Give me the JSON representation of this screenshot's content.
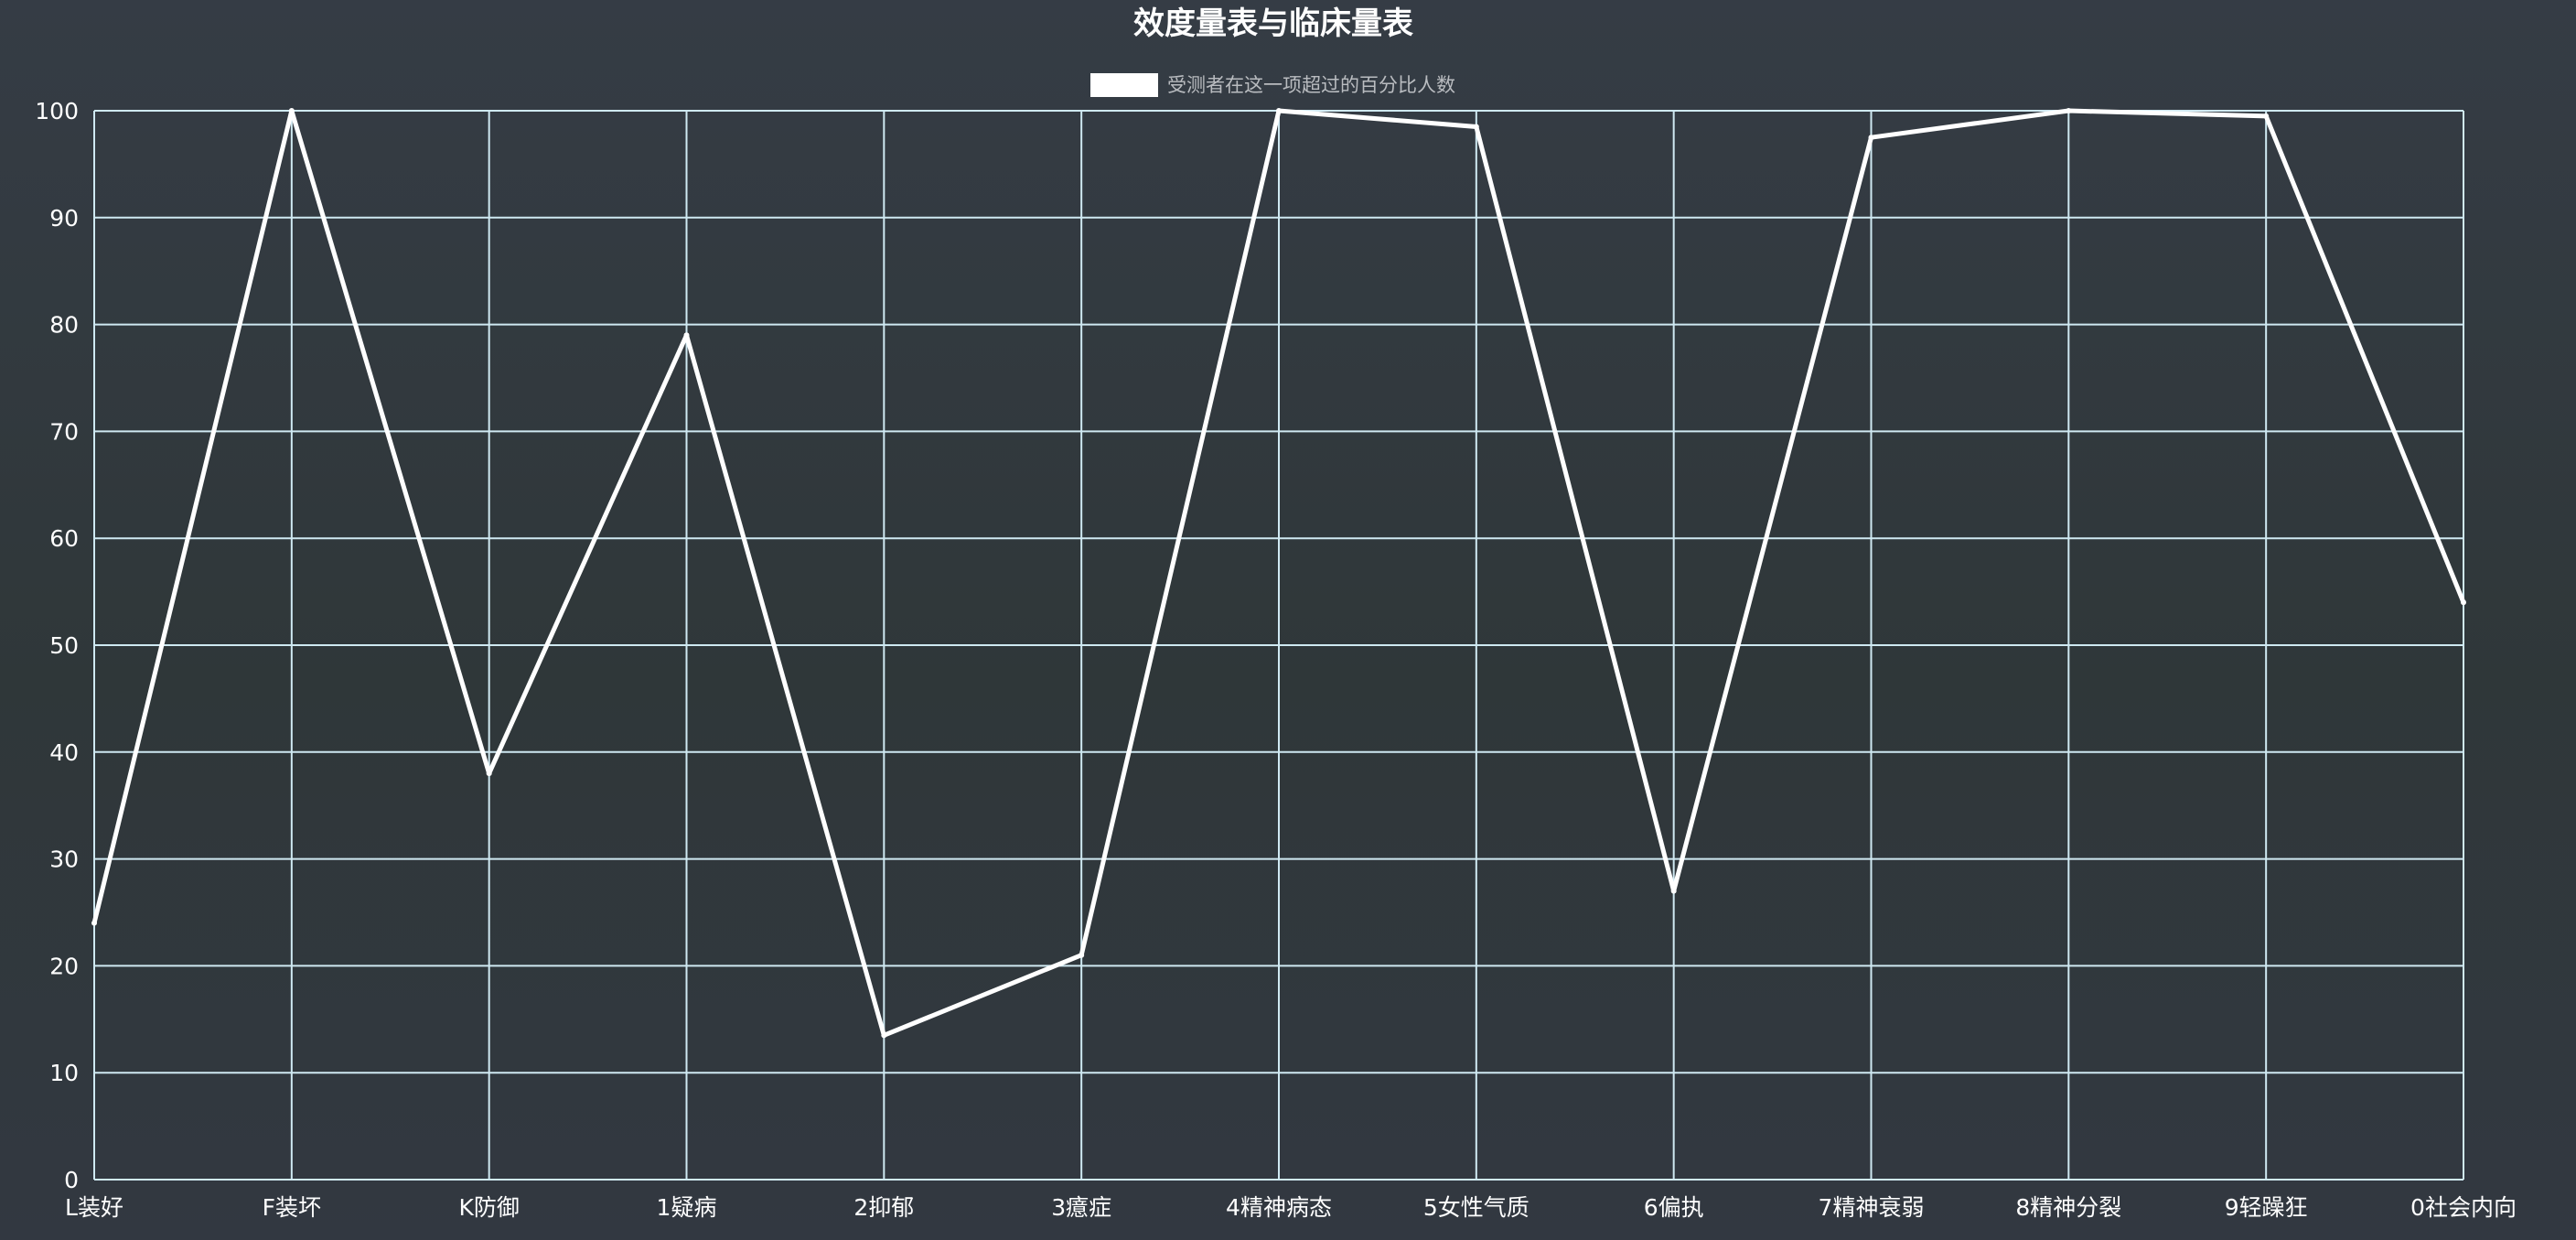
{
  "chart_data": {
    "type": "line",
    "title": "效度量表与临床量表",
    "categories": [
      "L装好",
      "F装坏",
      "K防御",
      "1疑病",
      "2抑郁",
      "3癔症",
      "4精神病态",
      "5女性气质",
      "6偏执",
      "7精神衰弱",
      "8精神分裂",
      "9轻躁狂",
      "0社会内向"
    ],
    "series": [
      {
        "name": "受测者在这一项超过的百分比人数",
        "color": "#ffffff",
        "values": [
          24,
          100,
          38,
          79,
          13.5,
          21,
          100,
          98.5,
          27,
          97.5,
          100,
          99.5,
          54
        ]
      }
    ],
    "ylim": [
      0,
      100
    ],
    "yticks": [
      0,
      10,
      20,
      30,
      40,
      50,
      60,
      70,
      80,
      90,
      100
    ],
    "grid": true,
    "legend_position": "top-center",
    "colors": {
      "grid": "#cfe9f2",
      "line": "#ffffff",
      "legend_box": "#ffffff",
      "background": "#2f3740"
    }
  }
}
